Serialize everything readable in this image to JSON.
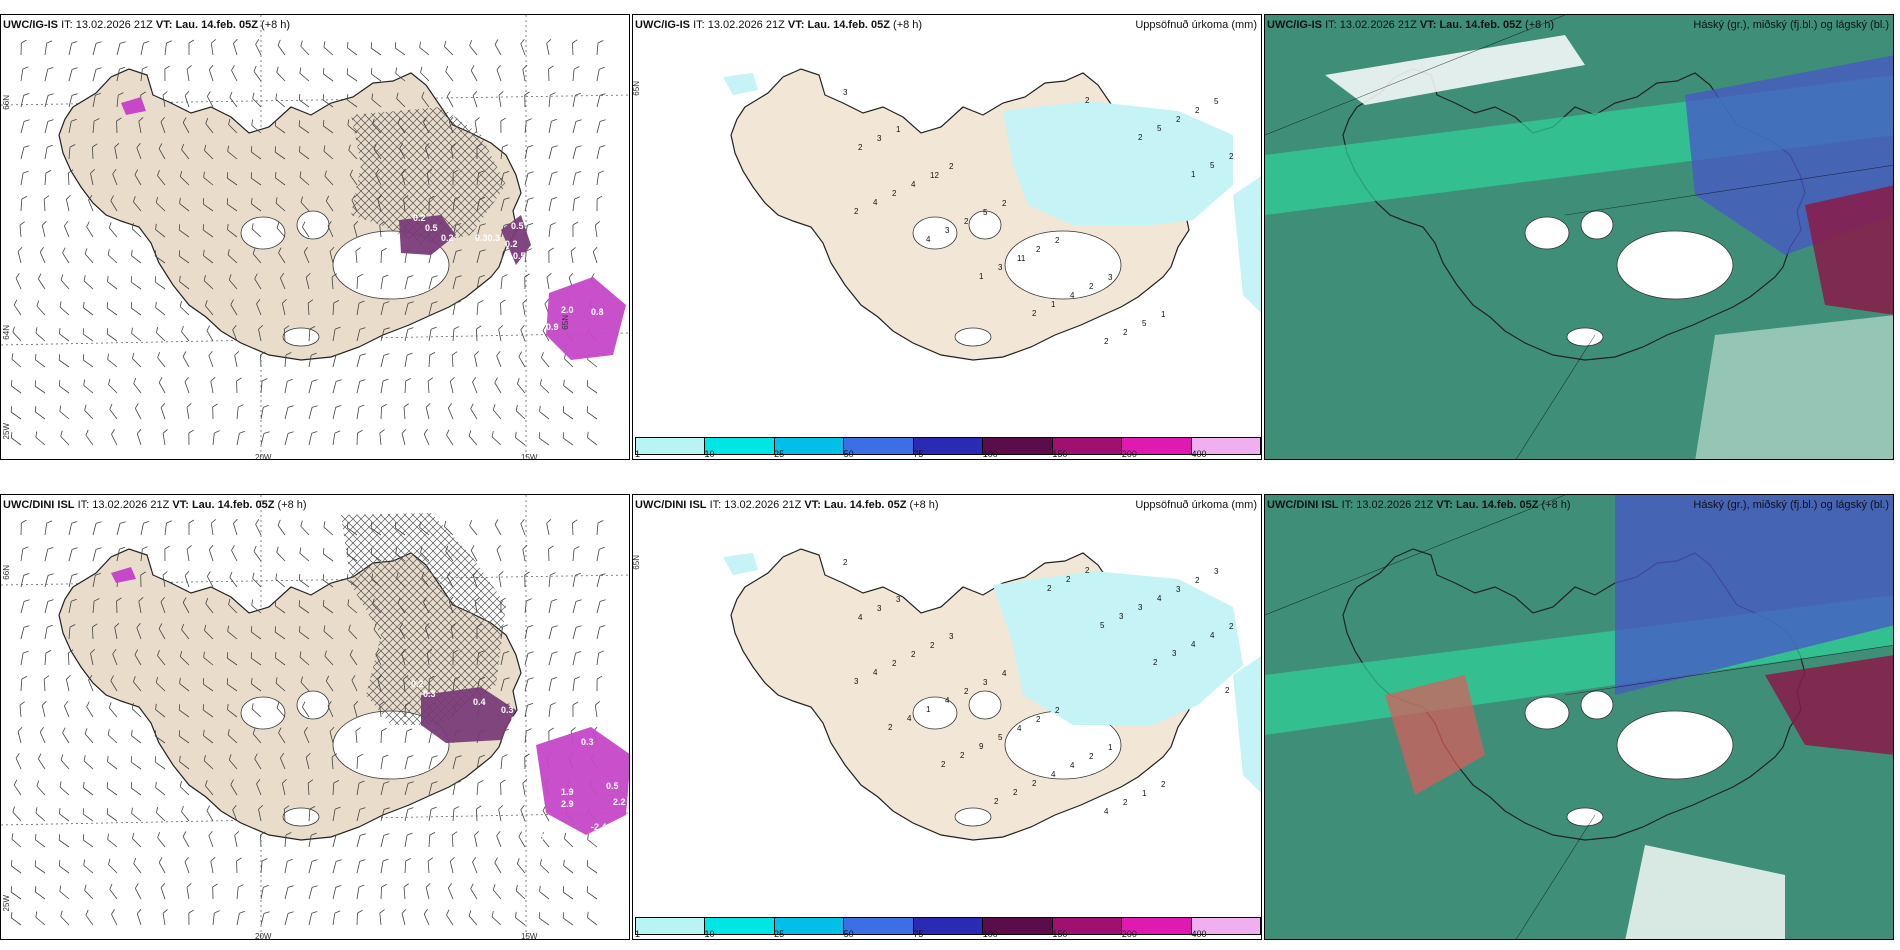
{
  "panels": {
    "p1": {
      "model": "UWC/IG-IS",
      "it_label": "IT:",
      "it": "13.02.2026 21Z",
      "vt_label": "VT:",
      "vt": "Lau. 14.feb. 05Z",
      "lead": "(+8 h)"
    },
    "p2": {
      "model": "UWC/IG-IS",
      "it_label": "IT:",
      "it": "13.02.2026 21Z",
      "vt_label": "VT:",
      "vt": "Lau. 14.feb. 05Z",
      "lead": "(+8 h)",
      "right": "Uppsöfnuð úrkoma (mm)"
    },
    "p3": {
      "model": "UWC/IG-IS",
      "it_label": "IT:",
      "it": "13.02.2026 21Z",
      "vt_label": "VT:",
      "vt": "Lau. 14.feb. 05Z",
      "lead": "(+8 h)",
      "right": "Háský (gr.), miðský (fj.bl.) og lágský (bl.)"
    },
    "p4": {
      "model": "UWC/DINI ISL",
      "it_label": "IT:",
      "it": "13.02.2026 21Z",
      "vt_label": "VT:",
      "vt": "Lau. 14.feb. 05Z",
      "lead": "(+8 h)"
    },
    "p5": {
      "model": "UWC/DINI ISL",
      "it_label": "IT:",
      "it": "13.02.2026 21Z",
      "vt_label": "VT:",
      "vt": "Lau. 14.feb. 05Z",
      "lead": "(+8 h)",
      "right": "Uppsöfnuð úrkoma (mm)"
    },
    "p6": {
      "model": "UWC/DINI ISL",
      "it_label": "IT:",
      "it": "13.02.2026 21Z",
      "vt_label": "VT:",
      "vt": "Lau. 14.feb. 05Z",
      "lead": "(+8 h)",
      "right": "Háský (gr.), miðský (fj.bl.) og lágský (bl.)"
    }
  },
  "axis_labels": {
    "lat66": "66N",
    "lat64": "64N",
    "lat65": "65N",
    "lon25w": "25W",
    "lon20w": "20W",
    "lon15w": "15W"
  },
  "legend": {
    "levels": [
      "1",
      "10",
      "25",
      "50",
      "75",
      "100",
      "150",
      "200",
      "400"
    ],
    "colors": [
      "#b8f4f4",
      "#00e5e5",
      "#00bfe8",
      "#3c6fe6",
      "#2a2ab4",
      "#5a0d4a",
      "#a0106e",
      "#e01ab0",
      "#f0b0f0"
    ]
  },
  "colors": {
    "land": "#f2e6d6",
    "land_wind": "#e9dccb",
    "precip_light": "#c6f3f5",
    "purple": "#7a3c78",
    "magenta": "#c548c8",
    "cloud_high": "#3f8f78",
    "cloud_mid": "#4a56c8",
    "cloud_low": "#8a1a48"
  },
  "wind_values_ig": [
    "0.2",
    "0.5",
    "0.2",
    "0.30.3",
    "0.2",
    "0.5",
    "0.5",
    "0.3",
    "2.0",
    "0.8",
    "0.9",
    "1.3"
  ],
  "wind_values_dini": [
    "0.2",
    "0.3",
    "0.4",
    "0.3",
    "0.5",
    "0.3",
    "1.9",
    "2.9",
    "0.5",
    "2.2",
    "-3.4",
    "-2.4"
  ],
  "precip_numbers_ig": [
    "3",
    "1",
    "2",
    "2",
    "2",
    "3",
    "1",
    "5",
    "3",
    "12",
    "5",
    "2",
    "2",
    "5",
    "2",
    "2",
    "4",
    "2",
    "11",
    "4",
    "2",
    "2",
    "2",
    "2",
    "3",
    "3",
    "1",
    "2",
    "5",
    "5",
    "4",
    "4",
    "1",
    "2",
    "2",
    "2",
    "1",
    "2"
  ],
  "precip_numbers_dini": [
    "2",
    "3",
    "3",
    "4",
    "2",
    "1",
    "2",
    "3",
    "3",
    "2",
    "3",
    "2",
    "2",
    "1",
    "2",
    "4",
    "2",
    "2",
    "4",
    "4",
    "2",
    "3",
    "2",
    "2",
    "4",
    "5",
    "4",
    "4",
    "4",
    "4",
    "4",
    "1",
    "9",
    "2",
    "2",
    "3",
    "4",
    "3",
    "4",
    "2",
    "2",
    "2",
    "3",
    "3",
    "2",
    "2",
    "2",
    "2",
    "2",
    "5",
    "2"
  ]
}
